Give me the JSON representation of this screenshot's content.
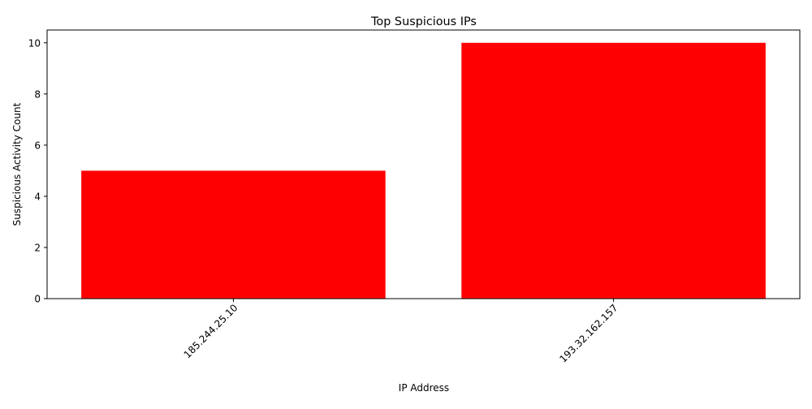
{
  "chart_data": {
    "type": "bar",
    "title": "Top Suspicious IPs",
    "xlabel": "IP Address",
    "ylabel": "Suspicious Activity Count",
    "categories": [
      "185.244.25.10",
      "193.32.162.157"
    ],
    "values": [
      5,
      10
    ],
    "ylim": [
      0,
      10.5
    ],
    "yticks": [
      0,
      2,
      4,
      6,
      8,
      10
    ],
    "ytick_labels": [
      "0",
      "2",
      "4",
      "6",
      "8",
      "10"
    ],
    "x_tick_rotation_deg": 45,
    "bar_color": "#ff0000",
    "grid": false,
    "legend": "none"
  }
}
